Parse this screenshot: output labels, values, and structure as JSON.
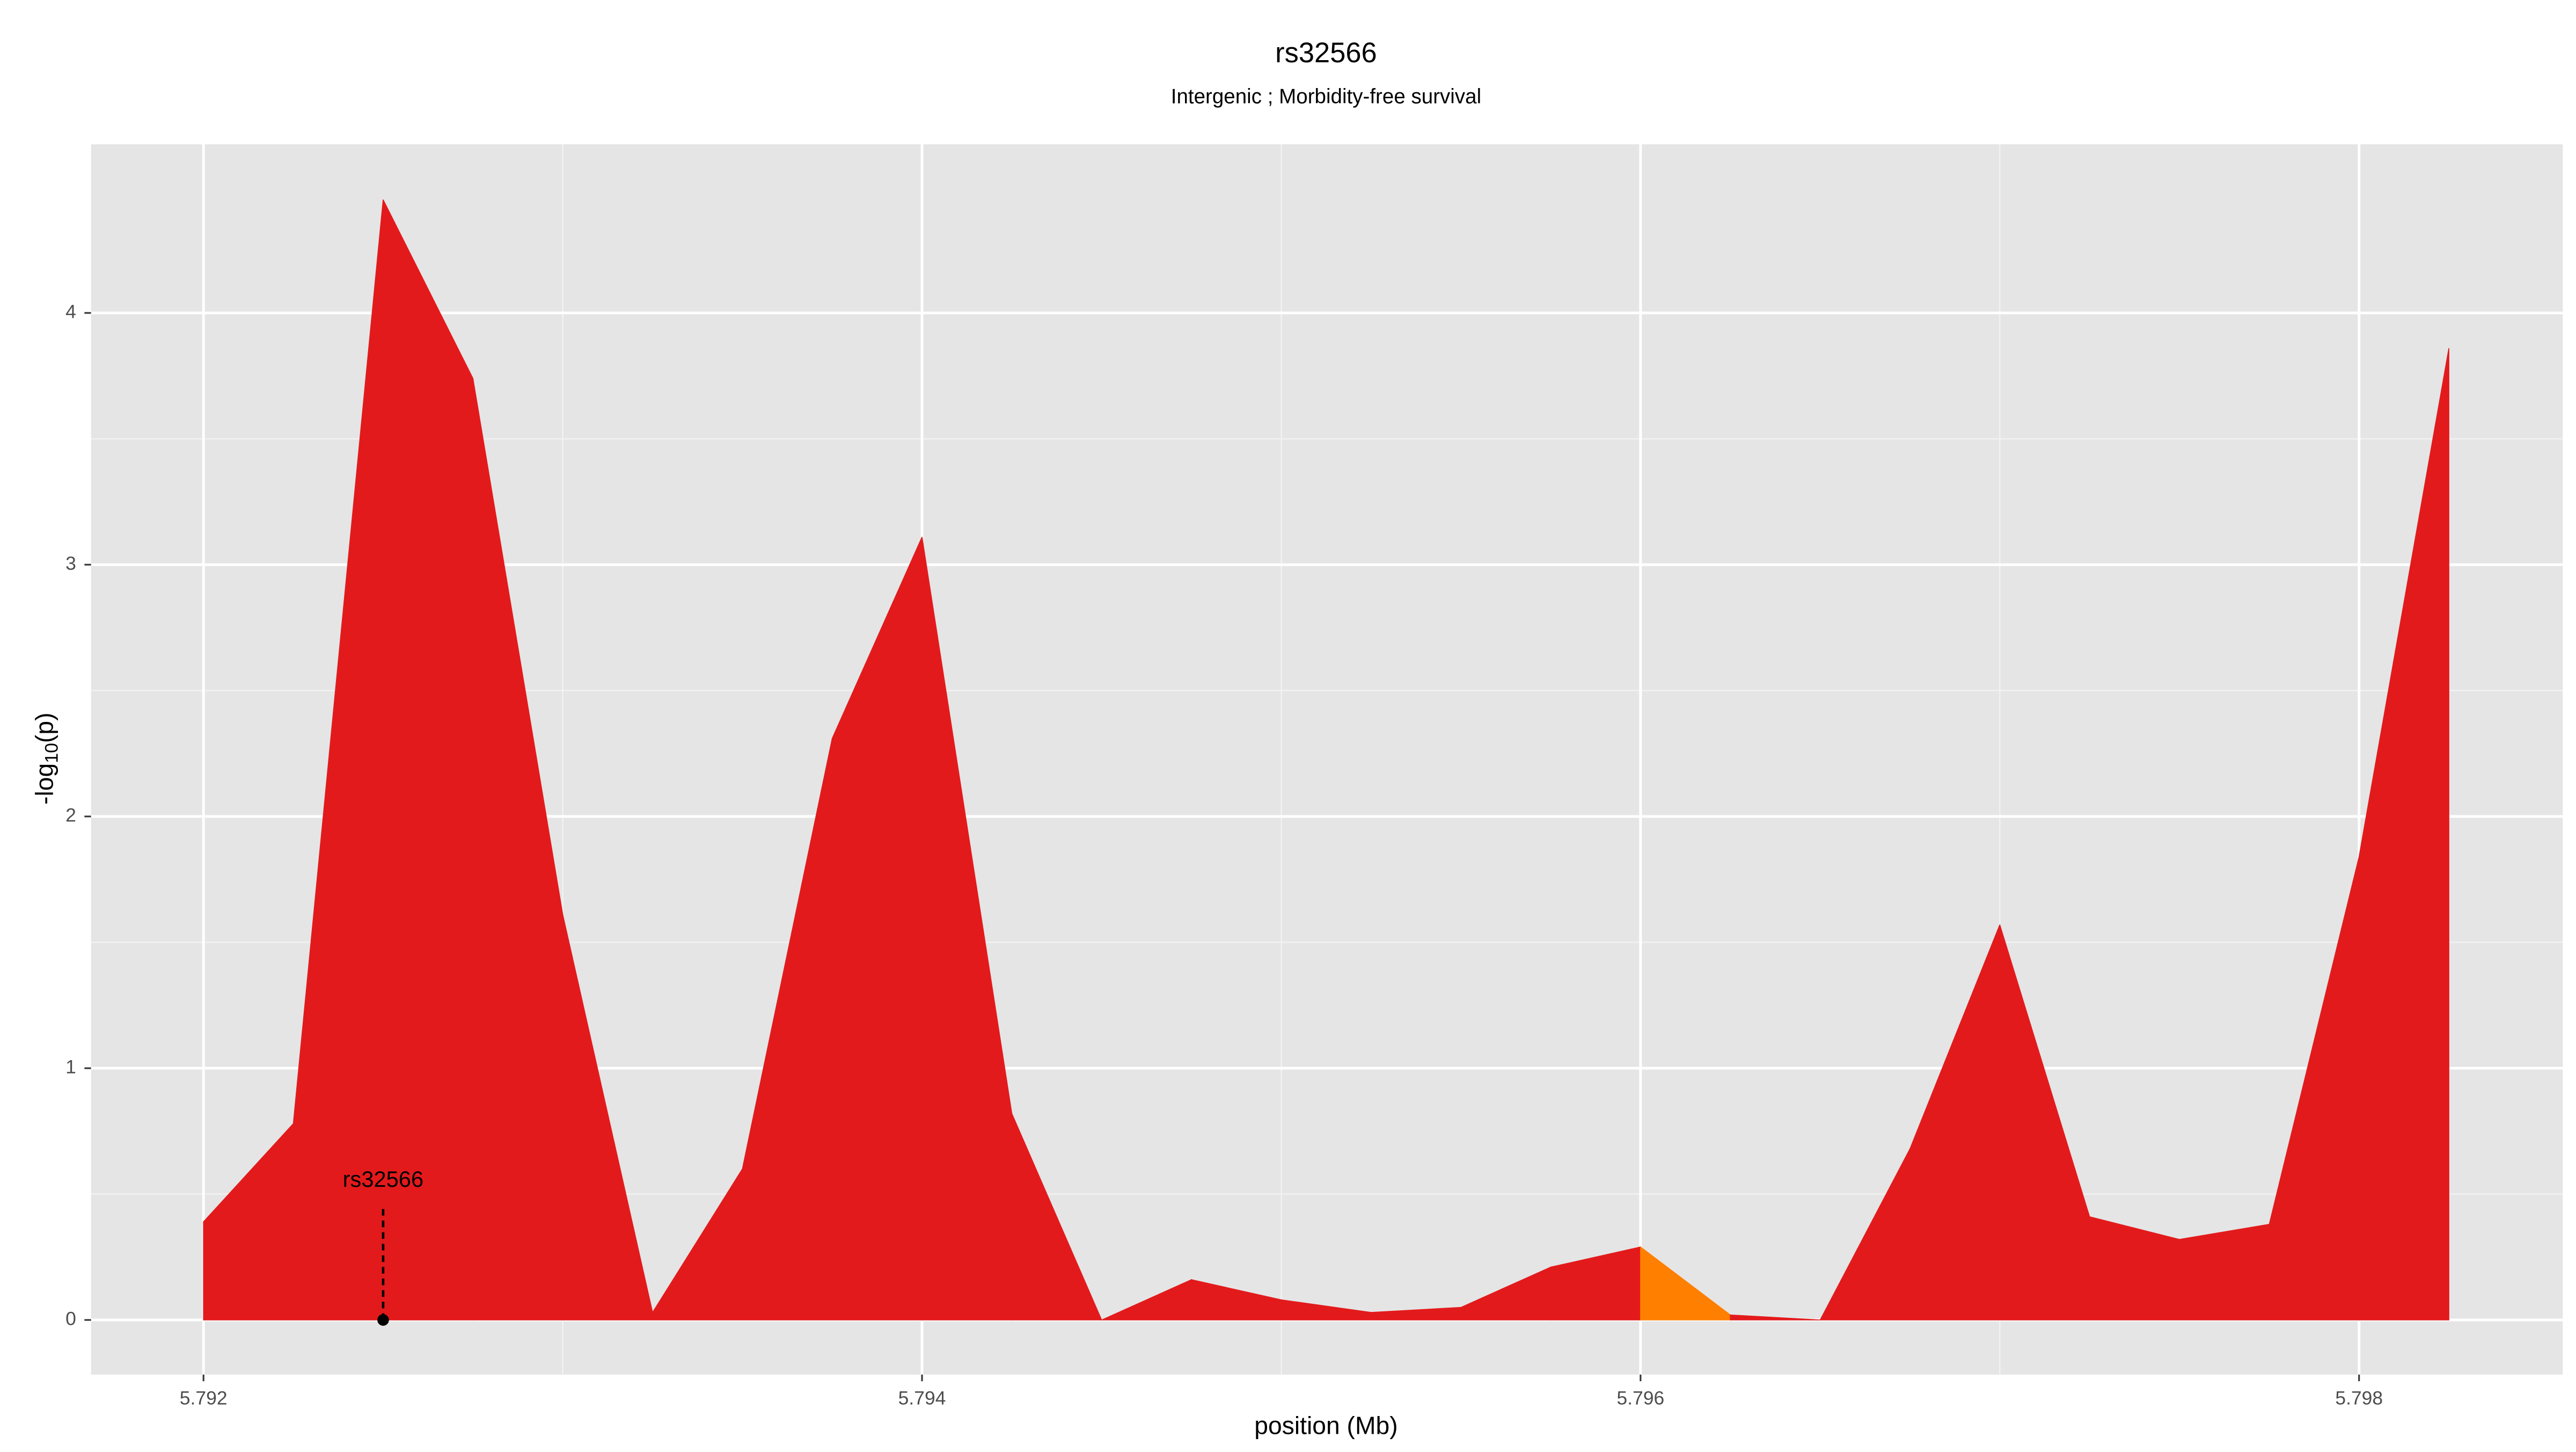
{
  "chart_data": {
    "type": "area",
    "title": "rs32566",
    "subtitle": "Intergenic ; Morbidity-free survival",
    "xlabel": "position (Mb)",
    "ylabel": {
      "prefix": "-log",
      "subscript": "10",
      "suffix": "(p)"
    },
    "x": [
      5.792,
      5.79225,
      5.7925,
      5.79275,
      5.793,
      5.79325,
      5.7935,
      5.79375,
      5.794,
      5.79425,
      5.7945,
      5.79475,
      5.795,
      5.79525,
      5.7955,
      5.79575,
      5.796,
      5.79625,
      5.7965,
      5.79675,
      5.797,
      5.79725,
      5.7975,
      5.79775,
      5.798,
      5.79825
    ],
    "values": [
      0.39,
      0.78,
      4.45,
      3.74,
      1.61,
      0.03,
      0.6,
      2.31,
      3.11,
      0.82,
      0.0,
      0.16,
      0.08,
      0.03,
      0.05,
      0.21,
      0.29,
      0.02,
      0.0,
      0.68,
      1.57,
      0.41,
      0.32,
      0.38,
      1.84,
      3.86
    ],
    "colors": [
      "#e31a1c",
      "#e31a1c",
      "#e31a1c",
      "#e31a1c",
      "#e31a1c",
      "#e31a1c",
      "#e31a1c",
      "#e31a1c",
      "#e31a1c",
      "#e31a1c",
      "#e31a1c",
      "#e31a1c",
      "#e31a1c",
      "#e31a1c",
      "#e31a1c",
      "#e31a1c",
      "#ff7f00",
      "#e31a1c",
      "#e31a1c",
      "#e31a1c",
      "#e31a1c",
      "#e31a1c",
      "#e31a1c",
      "#e31a1c",
      "#e31a1c",
      "#e31a1c"
    ],
    "annotation": {
      "text": "rs32566",
      "x": 5.7925,
      "y": 0
    },
    "xlim": [
      5.791687,
      5.798567
    ],
    "ylim": [
      -0.217,
      4.67
    ],
    "xticks": [
      5.792,
      5.794,
      5.796,
      5.798
    ],
    "yticks": [
      0,
      1,
      2,
      3,
      4
    ],
    "grid": true
  }
}
